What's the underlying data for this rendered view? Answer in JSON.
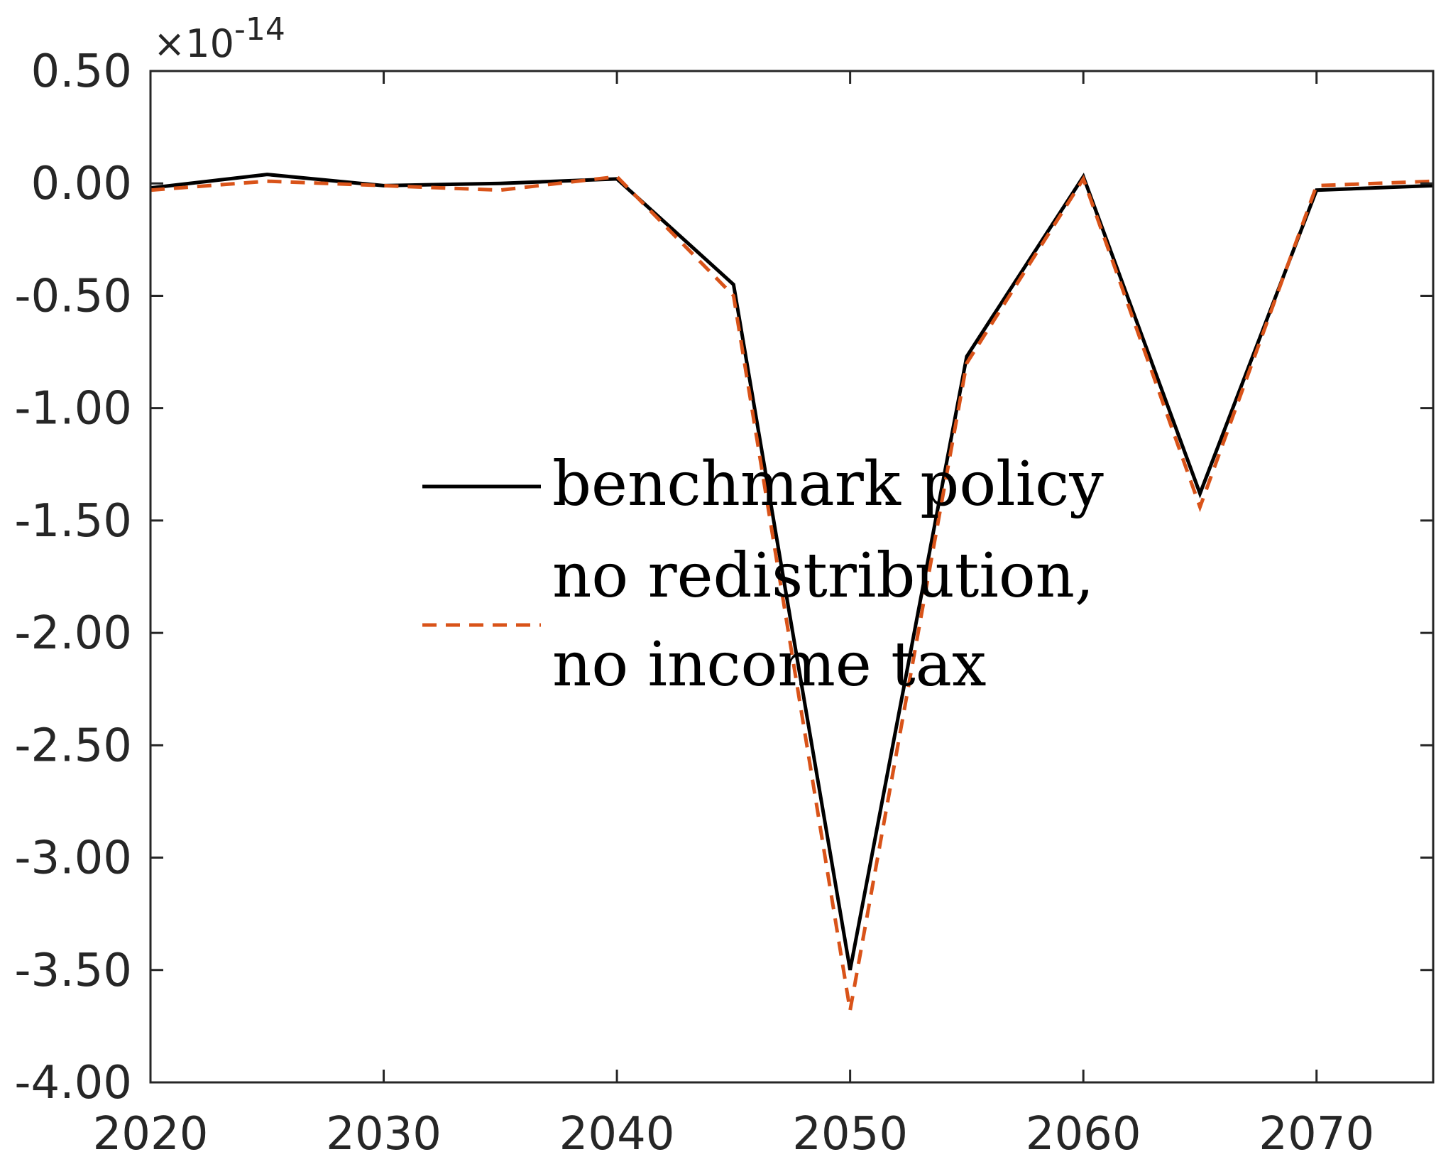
{
  "chart_data": {
    "type": "line",
    "title": "",
    "xlabel": "",
    "ylabel": "",
    "exponent_label": "×10",
    "exponent_power": "-14",
    "xlim": [
      2020,
      2075
    ],
    "ylim": [
      -4.0,
      0.5
    ],
    "x_ticks": [
      2020,
      2030,
      2040,
      2050,
      2060,
      2070
    ],
    "x_tick_labels": [
      "2020",
      "2030",
      "2040",
      "2050",
      "2060",
      "2070"
    ],
    "y_ticks": [
      0.5,
      0.0,
      -0.5,
      -1.0,
      -1.5,
      -2.0,
      -2.5,
      -3.0,
      -3.5,
      -4.0
    ],
    "y_tick_labels": [
      "0.50",
      "0.00",
      "-0.50",
      "-1.00",
      "-1.50",
      "-2.00",
      "-2.50",
      "-3.00",
      "-3.50",
      "-4.00"
    ],
    "grid": false,
    "legend_position": "center",
    "x": [
      2020,
      2025,
      2030,
      2035,
      2040,
      2045,
      2050,
      2055,
      2060,
      2065,
      2070,
      2075
    ],
    "series": [
      {
        "name": "benchmark policy",
        "color": "#000000",
        "dash": "solid",
        "values": [
          -0.02,
          0.04,
          -0.01,
          0.0,
          0.02,
          -0.45,
          -3.5,
          -0.77,
          0.03,
          -1.38,
          -0.03,
          -0.01
        ]
      },
      {
        "name": "no redistribution, no income tax",
        "legend_lines": [
          "no redistribution,",
          "no income tax"
        ],
        "color": "#D95319",
        "dash": "dashed",
        "values": [
          -0.03,
          0.01,
          -0.01,
          -0.03,
          0.03,
          -0.5,
          -3.68,
          -0.8,
          0.02,
          -1.44,
          -0.01,
          0.01
        ]
      }
    ]
  }
}
